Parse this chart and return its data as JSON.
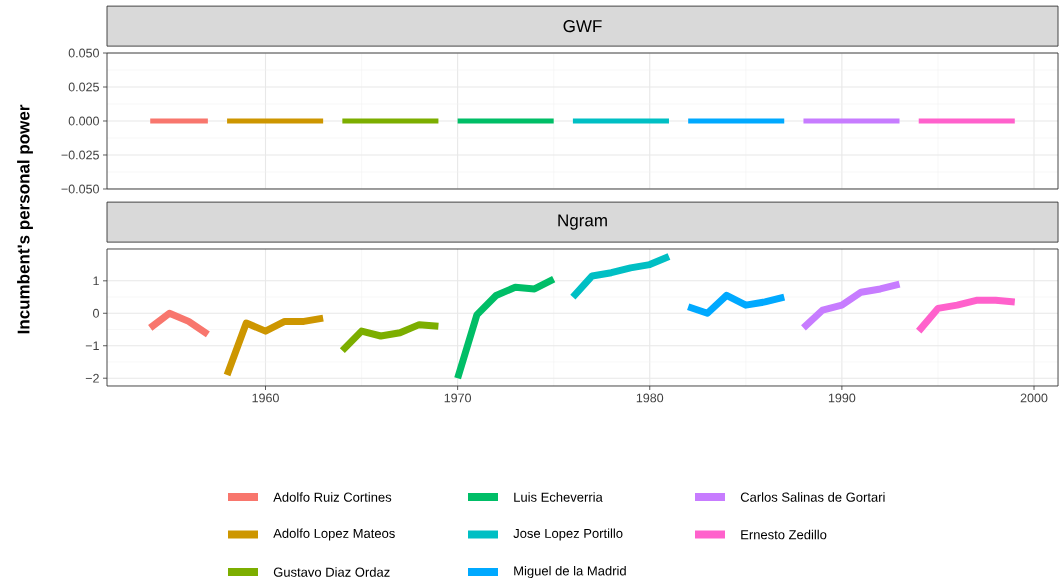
{
  "chart_data": [
    {
      "type": "line",
      "title": "GWF",
      "ylabel": "Incumbent's personal power",
      "xlim": [
        1951.75,
        2001.25
      ],
      "ylim": [
        -0.05,
        0.05
      ],
      "xticks": [
        1960,
        1970,
        1980,
        1990,
        2000
      ],
      "yticks": [
        {
          "value": -0.05,
          "label": "−0.050"
        },
        {
          "value": -0.025,
          "label": "−0.025"
        },
        {
          "value": 0,
          "label": "0.000"
        },
        {
          "value": 0.025,
          "label": "0.025"
        },
        {
          "value": 0.05,
          "label": "0.050"
        }
      ],
      "tick_labels": "y",
      "grid": true,
      "legend": false,
      "series": [
        {
          "color": "#f8766d",
          "x": [
            1954,
            1955,
            1956,
            1957
          ],
          "values": [
            0,
            0,
            0,
            0
          ]
        },
        {
          "color": "#cd9600",
          "x": [
            1958,
            1959,
            1960,
            1961,
            1962,
            1963
          ],
          "values": [
            0,
            0,
            0,
            0,
            0,
            0
          ]
        },
        {
          "color": "#7cae00",
          "x": [
            1964,
            1965,
            1966,
            1967,
            1968,
            1969
          ],
          "values": [
            0,
            0,
            0,
            0,
            0,
            0
          ]
        },
        {
          "color": "#00be67",
          "x": [
            1970,
            1971,
            1972,
            1973,
            1974,
            1975
          ],
          "values": [
            0,
            0,
            0,
            0,
            0,
            0
          ]
        },
        {
          "color": "#00bfc4",
          "x": [
            1976,
            1977,
            1978,
            1979,
            1980,
            1981
          ],
          "values": [
            0,
            0,
            0,
            0,
            0,
            0
          ]
        },
        {
          "color": "#00a9ff",
          "x": [
            1982,
            1983,
            1984,
            1985,
            1986,
            1987
          ],
          "values": [
            0,
            0,
            0,
            0,
            0,
            0
          ]
        },
        {
          "color": "#c77cff",
          "x": [
            1988,
            1989,
            1990,
            1991,
            1992,
            1993
          ],
          "values": [
            0,
            0,
            0,
            0,
            0,
            0
          ]
        },
        {
          "color": "#ff61cc",
          "x": [
            1994,
            1995,
            1996,
            1997,
            1998,
            1999
          ],
          "values": [
            0,
            0,
            0,
            0,
            0,
            0
          ]
        }
      ]
    },
    {
      "type": "line",
      "title": "Ngram",
      "xlim": [
        1951.75,
        2001.25
      ],
      "ylim": [
        -2.24,
        1.98
      ],
      "xticks": [
        1960,
        1970,
        1980,
        1990,
        2000
      ],
      "yticks": [
        {
          "value": -2,
          "label": "−2"
        },
        {
          "value": -1,
          "label": "−1"
        },
        0,
        1
      ],
      "grid": true,
      "legend": "bottom",
      "series": [
        {
          "name": "Adolfo Ruiz Cortines",
          "color": "#f8766d",
          "x": [
            1954,
            1955,
            1956,
            1957
          ],
          "values": [
            -0.45,
            0.0,
            -0.25,
            -0.65
          ]
        },
        {
          "name": "Adolfo Lopez Mateos",
          "color": "#cd9600",
          "x": [
            1958,
            1959,
            1960,
            1961,
            1962,
            1963
          ],
          "values": [
            -1.9,
            -0.3,
            -0.55,
            -0.25,
            -0.25,
            -0.15
          ]
        },
        {
          "name": "Gustavo Diaz Ordaz",
          "color": "#7cae00",
          "x": [
            1964,
            1965,
            1966,
            1967,
            1968,
            1969
          ],
          "values": [
            -1.15,
            -0.55,
            -0.7,
            -0.6,
            -0.35,
            -0.4
          ]
        },
        {
          "name": "Luis Echeverria",
          "color": "#00be67",
          "x": [
            1970,
            1971,
            1972,
            1973,
            1974,
            1975
          ],
          "values": [
            -2.0,
            -0.05,
            0.55,
            0.8,
            0.75,
            1.05
          ]
        },
        {
          "name": "Jose Lopez Portillo",
          "color": "#00bfc4",
          "x": [
            1976,
            1977,
            1978,
            1979,
            1980,
            1981
          ],
          "values": [
            0.5,
            1.15,
            1.25,
            1.4,
            1.5,
            1.75
          ]
        },
        {
          "name": "Miguel de la Madrid",
          "color": "#00a9ff",
          "x": [
            1982,
            1983,
            1984,
            1985,
            1986,
            1987
          ],
          "values": [
            0.2,
            0.0,
            0.55,
            0.25,
            0.35,
            0.5
          ]
        },
        {
          "name": "Carlos Salinas de Gortari",
          "color": "#c77cff",
          "x": [
            1988,
            1989,
            1990,
            1991,
            1992,
            1993
          ],
          "values": [
            -0.45,
            0.1,
            0.25,
            0.65,
            0.75,
            0.9
          ]
        },
        {
          "name": "Ernesto Zedillo",
          "color": "#ff61cc",
          "x": [
            1994,
            1995,
            1996,
            1997,
            1998,
            1999
          ],
          "values": [
            -0.55,
            0.15,
            0.25,
            0.4,
            0.4,
            0.35
          ]
        }
      ]
    }
  ]
}
